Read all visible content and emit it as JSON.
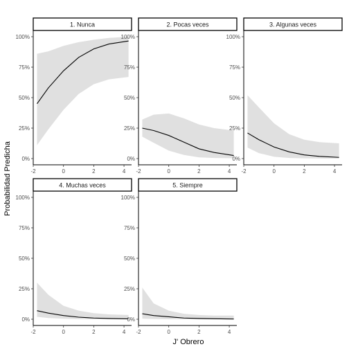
{
  "chart_data": {
    "type": "line",
    "subtype": "faceted-ribbon",
    "xlabel": "J' Obrero",
    "ylabel": "Probabilidad Predicha",
    "xlim": [
      -2,
      4.5
    ],
    "ylim": [
      0,
      1
    ],
    "x_ticks": [
      -2,
      0,
      2,
      4
    ],
    "y_ticks": [
      0,
      0.25,
      0.5,
      0.75,
      1
    ],
    "y_tick_labels": [
      "0%",
      "25%",
      "50%",
      "75%",
      "100%"
    ],
    "line_color": "#000000",
    "ribbon_color": "#e0e0e0",
    "grid": false,
    "x": [
      -1.75,
      -1,
      0,
      1,
      2,
      3,
      4.3
    ],
    "panels": [
      {
        "label": "1. Nunca",
        "y": [
          0.45,
          0.58,
          0.72,
          0.83,
          0.9,
          0.94,
          0.965
        ],
        "lower": [
          0.11,
          0.24,
          0.4,
          0.53,
          0.61,
          0.65,
          0.67
        ],
        "upper": [
          0.86,
          0.88,
          0.925,
          0.955,
          0.975,
          0.99,
          1.0
        ]
      },
      {
        "label": "2. Pocas veces",
        "y": [
          0.25,
          0.23,
          0.19,
          0.135,
          0.08,
          0.05,
          0.025
        ],
        "lower": [
          0.18,
          0.13,
          0.065,
          0.03,
          0.01,
          0.005,
          0.003
        ],
        "upper": [
          0.32,
          0.36,
          0.37,
          0.33,
          0.28,
          0.25,
          0.23
        ]
      },
      {
        "label": "3. Algunas veces",
        "y": [
          0.21,
          0.155,
          0.095,
          0.055,
          0.03,
          0.018,
          0.01
        ],
        "lower": [
          0.09,
          0.045,
          0.015,
          0.005,
          0.002,
          0.001,
          0.0
        ],
        "upper": [
          0.52,
          0.42,
          0.29,
          0.2,
          0.155,
          0.135,
          0.125
        ]
      },
      {
        "label": "4. Muchas veces",
        "y": [
          0.07,
          0.05,
          0.03,
          0.017,
          0.01,
          0.006,
          0.003
        ],
        "lower": [
          0.02,
          0.01,
          0.004,
          0.001,
          0.0,
          0.0,
          0.0
        ],
        "upper": [
          0.3,
          0.2,
          0.11,
          0.07,
          0.05,
          0.04,
          0.035
        ]
      },
      {
        "label": "5. Siempre",
        "y": [
          0.045,
          0.03,
          0.02,
          0.01,
          0.006,
          0.004,
          0.002
        ],
        "lower": [
          0.005,
          0.002,
          0.0,
          0.0,
          0.0,
          0.0,
          0.0
        ],
        "upper": [
          0.26,
          0.13,
          0.07,
          0.045,
          0.035,
          0.03,
          0.03
        ]
      }
    ]
  }
}
